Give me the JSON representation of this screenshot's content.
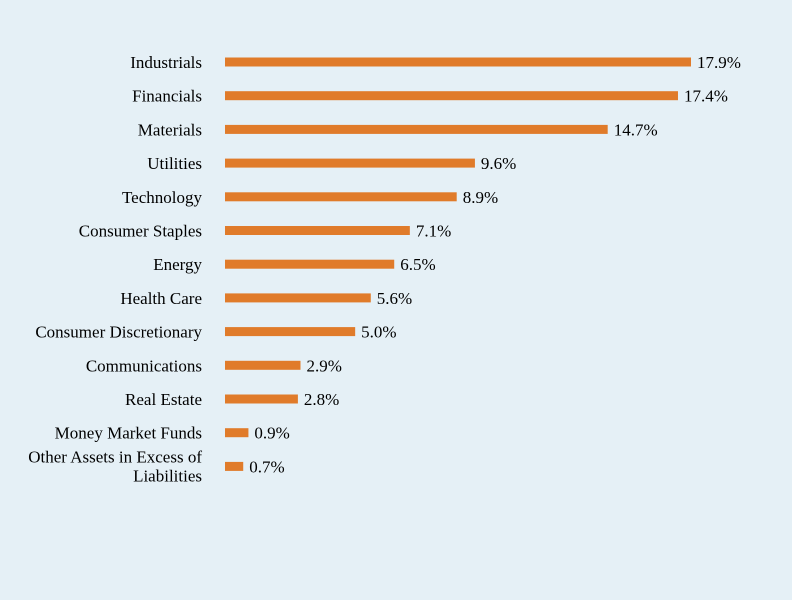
{
  "chart_data": {
    "type": "bar",
    "orientation": "horizontal",
    "title": "",
    "xlabel": "",
    "ylabel": "",
    "bar_color": "#e07b2a",
    "background": "#e5f0f6",
    "grid": false,
    "legend": "none",
    "xlim": [
      0,
      17.9
    ],
    "categories": [
      "Industrials",
      "Financials",
      "Materials",
      "Utilities",
      "Technology",
      "Consumer Staples",
      "Energy",
      "Health Care",
      "Consumer Discretionary",
      "Communications",
      "Real Estate",
      "Money Market Funds",
      "Other Assets in Excess of Liabilities"
    ],
    "values": [
      17.9,
      17.4,
      14.7,
      9.6,
      8.9,
      7.1,
      6.5,
      5.6,
      5.0,
      2.9,
      2.8,
      0.9,
      0.7
    ],
    "value_labels": [
      "17.9%",
      "17.4%",
      "14.7%",
      "9.6%",
      "8.9%",
      "7.1%",
      "6.5%",
      "5.6%",
      "5.0%",
      "2.9%",
      "2.8%",
      "0.9%",
      "0.7%"
    ]
  }
}
